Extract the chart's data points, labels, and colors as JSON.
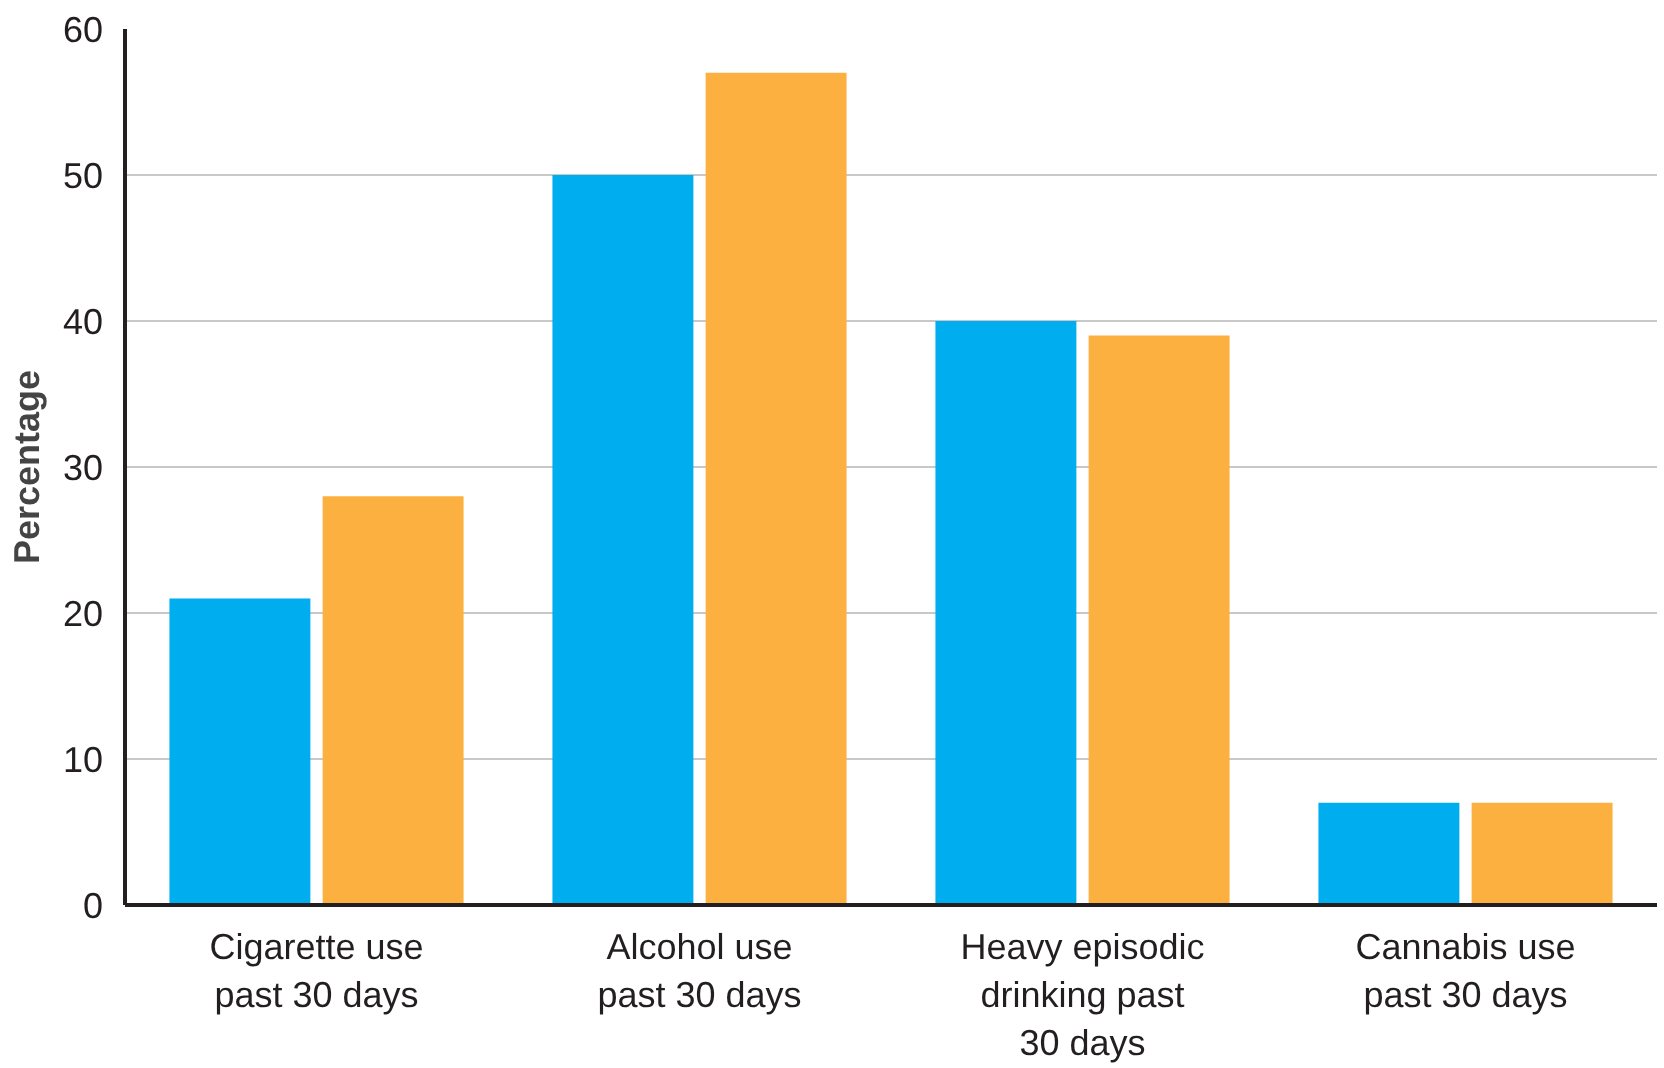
{
  "chart_data": {
    "type": "bar",
    "ylabel": "Percentage",
    "categories": [
      "Cigarette use\npast 30 days",
      "Alcohol use\npast 30 days",
      "Heavy episodic\ndrinking past\n30 days",
      "Cannabis use\npast 30 days"
    ],
    "series": [
      {
        "color": "#00aeef",
        "values": [
          21,
          50,
          40,
          7
        ]
      },
      {
        "color": "#fbb040",
        "values": [
          28,
          57,
          39,
          7
        ]
      }
    ],
    "ylim": [
      0,
      60
    ],
    "yticks": [
      0,
      10,
      20,
      30,
      40,
      50,
      60
    ],
    "grid": "y"
  }
}
